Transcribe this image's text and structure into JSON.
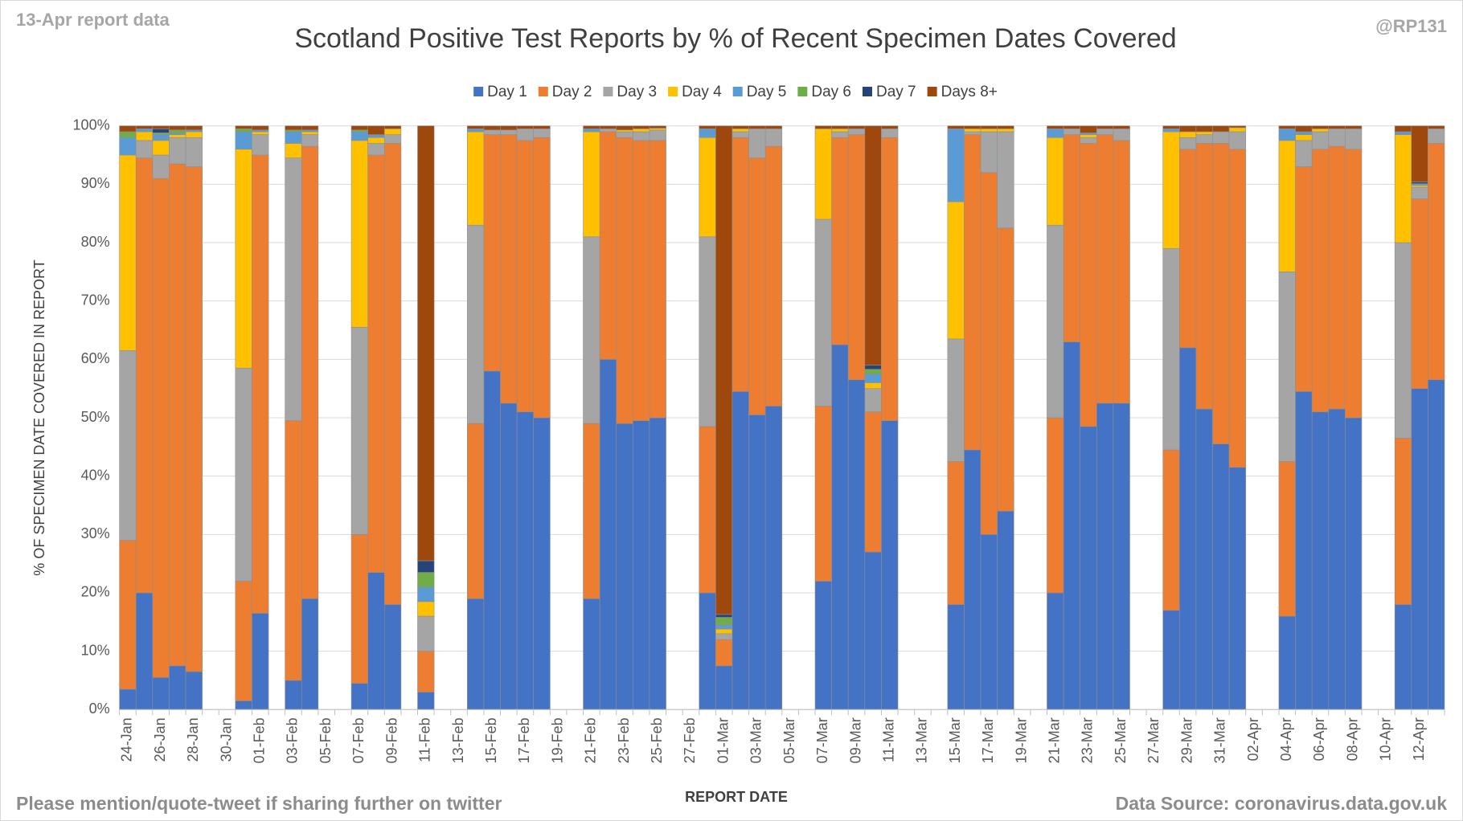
{
  "chart_data": {
    "type": "stacked_bar",
    "title": "Scotland Positive Test Reports by % of Recent Specimen Dates Covered",
    "top_left_note": "13-Apr report data",
    "top_right_note": "@RP131",
    "footer_left": "Please mention/quote-tweet if sharing further on twitter",
    "footer_right": "Data Source: coronavirus.data.gov.uk",
    "x_label": "REPORT DATE",
    "y_label": "% OF SPECIMEN DATE COVERED IN REPORT",
    "legend_position": "top",
    "grid": true,
    "ylim": [
      0,
      100
    ],
    "yticks": [
      {
        "value": 0,
        "label": "0%"
      },
      {
        "value": 10,
        "label": "10%"
      },
      {
        "value": 20,
        "label": "20%"
      },
      {
        "value": 30,
        "label": "30%"
      },
      {
        "value": 40,
        "label": "40%"
      },
      {
        "value": 50,
        "label": "50%"
      },
      {
        "value": 60,
        "label": "60%"
      },
      {
        "value": 70,
        "label": "70%"
      },
      {
        "value": 80,
        "label": "80%"
      },
      {
        "value": 90,
        "label": "90%"
      },
      {
        "value": 100,
        "label": "100%"
      }
    ],
    "categories": [
      "24-Jan",
      null,
      "26-Jan",
      null,
      "28-Jan",
      null,
      "30-Jan",
      null,
      "01-Feb",
      null,
      "03-Feb",
      null,
      "05-Feb",
      null,
      "07-Feb",
      null,
      "09-Feb",
      null,
      "11-Feb",
      null,
      "13-Feb",
      null,
      "15-Feb",
      null,
      "17-Feb",
      null,
      "19-Feb",
      null,
      "21-Feb",
      null,
      "23-Feb",
      null,
      "25-Feb",
      null,
      "27-Feb",
      null,
      "01-Mar",
      null,
      "03-Mar",
      null,
      "05-Mar",
      null,
      "07-Mar",
      null,
      "09-Mar",
      null,
      "11-Mar",
      null,
      "13-Mar",
      null,
      "15-Mar",
      null,
      "17-Mar",
      null,
      "19-Mar",
      null,
      "21-Mar",
      null,
      "23-Mar",
      null,
      "25-Mar",
      null,
      "27-Mar",
      null,
      "29-Mar",
      null,
      "31-Mar",
      null,
      "02-Apr",
      null,
      "04-Apr",
      null,
      "06-Apr",
      null,
      "08-Apr",
      null,
      "10-Apr",
      null,
      "12-Apr",
      null
    ],
    "series": [
      {
        "name": "Day 1",
        "color": "#4472c4",
        "values": [
          3.5,
          20,
          5.5,
          7.5,
          6.5,
          null,
          null,
          1.5,
          16.5,
          null,
          5,
          19,
          null,
          null,
          4.5,
          23.5,
          18,
          null,
          3,
          null,
          null,
          19,
          58,
          52.5,
          51,
          50,
          null,
          null,
          19,
          60,
          49,
          49.5,
          50,
          null,
          null,
          20,
          7.5,
          54.5,
          50.5,
          52,
          null,
          null,
          22,
          62.5,
          56.5,
          27,
          49.5,
          null,
          null,
          null,
          18,
          44.5,
          30,
          34,
          null,
          null,
          20,
          63,
          48.5,
          52.5,
          52.5,
          null,
          null,
          17,
          62,
          51.5,
          45.5,
          41.5,
          null,
          null,
          16,
          54.5,
          51,
          51.5,
          50,
          null,
          null,
          18,
          55,
          56.5
        ]
      },
      {
        "name": "Day 2",
        "color": "#ed7d31",
        "values": [
          25.5,
          74.5,
          85.5,
          86,
          86.5,
          null,
          null,
          20.5,
          78.5,
          null,
          44.5,
          77.5,
          null,
          null,
          25.5,
          71.5,
          79,
          null,
          7,
          null,
          null,
          30,
          40.5,
          46,
          46.5,
          48,
          null,
          null,
          30,
          39,
          49,
          48,
          47.5,
          null,
          null,
          28.5,
          4.5,
          43.5,
          44,
          44.5,
          null,
          null,
          30,
          35.5,
          42,
          24,
          48.5,
          null,
          null,
          null,
          24.5,
          54,
          62,
          48.5,
          null,
          null,
          30,
          35.5,
          48.5,
          46,
          45,
          null,
          null,
          27.5,
          34,
          45.5,
          51.5,
          54.5,
          null,
          null,
          26.5,
          38.5,
          45,
          45,
          46,
          null,
          null,
          28.5,
          32.5,
          40.5
        ]
      },
      {
        "name": "Day 3",
        "color": "#a5a5a5",
        "values": [
          32.5,
          3,
          4,
          4.5,
          5,
          null,
          null,
          36.5,
          3.5,
          null,
          45,
          2,
          null,
          null,
          35.5,
          2,
          1.5,
          null,
          6,
          null,
          null,
          34,
          0.8,
          0.8,
          2,
          1.5,
          null,
          null,
          32,
          0.5,
          1,
          1.5,
          1.8,
          null,
          null,
          32.5,
          1,
          1,
          5,
          3,
          null,
          null,
          32,
          1,
          1,
          4,
          1.5,
          null,
          null,
          null,
          21,
          0.5,
          7,
          16.5,
          null,
          null,
          33,
          1,
          1,
          1,
          2,
          null,
          null,
          34.5,
          2,
          1.5,
          2,
          3,
          null,
          null,
          32.5,
          4.5,
          3,
          3,
          3.5,
          null,
          null,
          33.5,
          2,
          2.5
        ]
      },
      {
        "name": "Day 4",
        "color": "#ffc000",
        "values": [
          33.5,
          1.5,
          2.5,
          0.5,
          1,
          null,
          null,
          37.5,
          0.5,
          null,
          2.5,
          0.5,
          null,
          null,
          32,
          1,
          1,
          null,
          2.5,
          null,
          null,
          16,
          0,
          0,
          0,
          0,
          null,
          null,
          18,
          0,
          0.3,
          0.5,
          0.3,
          null,
          null,
          17,
          0.8,
          0.5,
          0,
          0,
          null,
          null,
          15.5,
          0.5,
          0,
          1,
          0,
          null,
          null,
          null,
          23.5,
          0.5,
          0.5,
          0.5,
          null,
          null,
          15,
          0,
          0.5,
          0,
          0,
          null,
          null,
          20,
          1,
          0.5,
          0,
          0.7,
          null,
          null,
          22.5,
          1,
          0.5,
          0,
          0,
          null,
          null,
          18.5,
          0.3,
          0
        ]
      },
      {
        "name": "Day 5",
        "color": "#5b9bd5",
        "values": [
          3,
          0.5,
          1,
          0.3,
          0.3,
          null,
          null,
          3,
          0.3,
          null,
          2,
          0.3,
          null,
          null,
          1.5,
          0.5,
          0,
          null,
          2.5,
          null,
          null,
          0.5,
          0,
          0,
          0,
          0,
          null,
          null,
          0.5,
          0,
          0,
          0,
          0,
          null,
          null,
          1.5,
          0.7,
          0,
          0,
          0,
          null,
          null,
          0,
          0,
          0,
          1.5,
          0,
          null,
          null,
          null,
          12.5,
          0,
          0,
          0,
          null,
          null,
          1.5,
          0,
          0.3,
          0,
          0,
          null,
          null,
          0.5,
          0,
          0,
          0,
          0,
          null,
          null,
          2,
          0.5,
          0,
          0,
          0,
          null,
          null,
          0.5,
          0.3,
          0
        ]
      },
      {
        "name": "Day 6",
        "color": "#70ad47",
        "values": [
          1,
          0,
          0.3,
          0.5,
          0,
          null,
          null,
          0.5,
          0,
          null,
          0.3,
          0,
          null,
          null,
          0.3,
          0,
          0,
          null,
          2.5,
          null,
          null,
          0,
          0,
          0,
          0,
          0,
          null,
          null,
          0,
          0,
          0,
          0,
          0,
          null,
          null,
          0,
          1.3,
          0,
          0,
          0,
          null,
          null,
          0,
          0,
          0,
          0.8,
          0,
          null,
          null,
          null,
          0,
          0,
          0,
          0,
          null,
          null,
          0,
          0,
          0,
          0,
          0,
          null,
          null,
          0,
          0,
          0,
          0,
          0,
          null,
          null,
          0,
          0,
          0,
          0,
          0,
          null,
          null,
          0,
          0,
          0
        ]
      },
      {
        "name": "Day 7",
        "color": "#264478",
        "values": [
          0,
          0,
          0.7,
          0,
          0,
          null,
          null,
          0,
          0,
          null,
          0,
          0,
          null,
          null,
          0,
          0,
          0,
          null,
          2,
          null,
          null,
          0,
          0,
          0,
          0,
          0,
          null,
          null,
          0,
          0,
          0,
          0,
          0,
          null,
          null,
          0,
          0.5,
          0,
          0,
          0,
          null,
          null,
          0,
          0,
          0,
          0.7,
          0,
          null,
          null,
          null,
          0,
          0,
          0,
          0,
          null,
          null,
          0,
          0,
          0,
          0,
          0,
          null,
          null,
          0,
          0,
          0,
          0,
          0,
          null,
          null,
          0,
          0,
          0,
          0,
          0,
          null,
          null,
          0,
          0.3,
          0
        ]
      },
      {
        "name": "Days 8+",
        "color": "#9e480e",
        "values": [
          1,
          0.5,
          0.5,
          0.7,
          0.7,
          null,
          null,
          0.5,
          0.7,
          null,
          0.7,
          0.7,
          null,
          null,
          0.7,
          1.5,
          0.5,
          null,
          74.5,
          null,
          null,
          0.5,
          0.7,
          0.7,
          0.5,
          0.5,
          null,
          null,
          0.5,
          0.5,
          0.7,
          0.5,
          0.4,
          null,
          null,
          0.5,
          83.7,
          0.5,
          0.5,
          0.5,
          null,
          null,
          0.5,
          0.5,
          0.5,
          41,
          0.5,
          null,
          null,
          null,
          0.5,
          0.5,
          0.5,
          0.5,
          null,
          null,
          0.5,
          0.5,
          1.2,
          0.5,
          0.5,
          null,
          null,
          0.5,
          1,
          1,
          1,
          0.3,
          null,
          null,
          0.5,
          1,
          0.5,
          0.5,
          0.5,
          null,
          null,
          1,
          9.6,
          0.5
        ]
      }
    ]
  }
}
